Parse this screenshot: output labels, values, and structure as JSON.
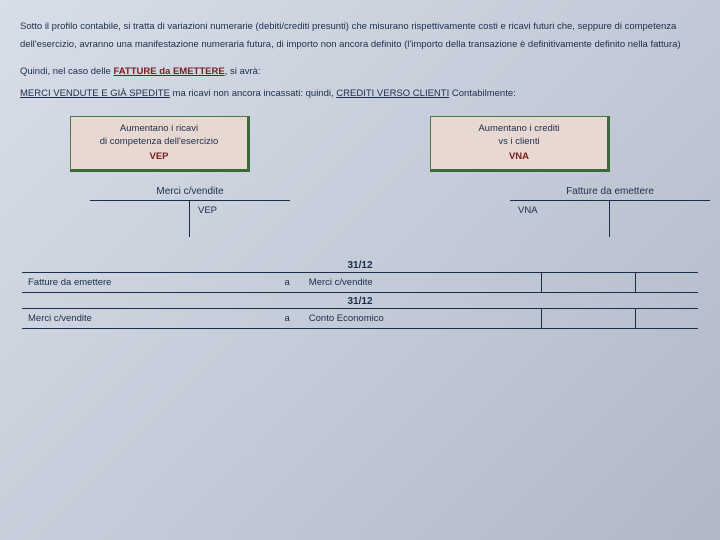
{
  "paragraph": "Sotto il profilo contabile, si tratta di variazioni numerarie (debiti/crediti presunti) che misurano rispettivamente costi e ricavi futuri che, seppure di competenza dell'esercizio, avranno una manifestazione numeraria futura, di importo non ancora definito (l'importo della transazione è definitivamente definito nella fattura)",
  "line2_pre": "Quindi, nel caso delle ",
  "line2_bold": "FATTURE da EMETTERE",
  "line2_post": ", si avrà:",
  "line3_a": "MERCI VENDUTE E GIÀ SPEDITE",
  "line3_b": " ma ricavi non ancora incassati: quindi, ",
  "line3_c": "CREDITI VERSO CLIENTI",
  "line3_d": " Contabilmente:",
  "box_left": {
    "l1": "Aumentano i ricavi",
    "l2": "di competenza dell'esercizio",
    "tag": "VEP",
    "bg": "#e8d8d2",
    "border": "#4a7a4a"
  },
  "box_right": {
    "l1": "Aumentano i crediti",
    "l2": "vs i clienti",
    "tag": "VNA",
    "bg": "#e8d8d2",
    "border": "#4a7a4a"
  },
  "tacc_left": {
    "title": "Merci c/vendite",
    "right": "VEP"
  },
  "tacc_right": {
    "title": "Fatture da emettere",
    "left": "VNA"
  },
  "journal": {
    "date": "31/12",
    "rows": [
      {
        "debit": "Fatture da emettere",
        "to": "a",
        "credit": "Merci c/vendite"
      },
      {
        "debit": "Merci c/vendite",
        "to": "a",
        "credit": "Conto Economico"
      }
    ]
  },
  "colors": {
    "text": "#1a2e4a",
    "accent": "#7a1c1c"
  }
}
